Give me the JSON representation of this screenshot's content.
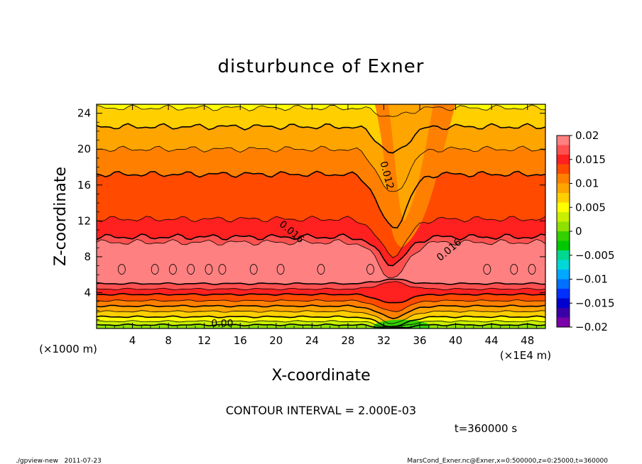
{
  "chart_data": {
    "type": "contour",
    "title": "disturbunce of Exner",
    "xlabel": "X-coordinate",
    "ylabel": "Z-coordinate",
    "x_unit": "(×1E4 m)",
    "y_unit": "(×1000 m)",
    "xlim": [
      0,
      50
    ],
    "ylim": [
      0,
      25
    ],
    "x_ticks": [
      "4",
      "8",
      "12",
      "16",
      "20",
      "24",
      "28",
      "32",
      "36",
      "40",
      "44",
      "48"
    ],
    "y_ticks": [
      "4",
      "8",
      "12",
      "16",
      "20",
      "24"
    ],
    "contour_labels": [
      {
        "text": "0.012",
        "x": 32.0,
        "y": 17.0
      },
      {
        "text": "0.016",
        "x": 21.5,
        "y": 10.5
      },
      {
        "text": "0.016",
        "x": 39.5,
        "y": 8.5
      },
      {
        "text": "0.00",
        "x": 14.0,
        "y": 0.2
      }
    ],
    "colorbar": {
      "ticks": [
        "0.02",
        "0.015",
        "0.01",
        "0.005",
        "0",
        "−0.005",
        "−0.01",
        "−0.015",
        "−0.02"
      ],
      "colors": [
        "#ff8080",
        "#ff5050",
        "#ff2020",
        "#ff4a00",
        "#ff8000",
        "#ffa500",
        "#ffcf00",
        "#ffff00",
        "#c8f000",
        "#8ee000",
        "#34d000",
        "#00c800",
        "#00d890",
        "#00d8d8",
        "#00a8ff",
        "#0070ff",
        "#0030ff",
        "#0000d0",
        "#3a00a8",
        "#7a00a8"
      ],
      "range": [
        -0.02,
        0.02
      ]
    },
    "contour_interval": "CONTOUR INTERVAL = 2.000E-03",
    "time_label": "t=360000 s"
  },
  "footer": {
    "left": "./gpview-new   2011-07-23",
    "right": "MarsCond_Exner.nc@Exner,x=0:500000,z=0:25000,t=360000"
  }
}
